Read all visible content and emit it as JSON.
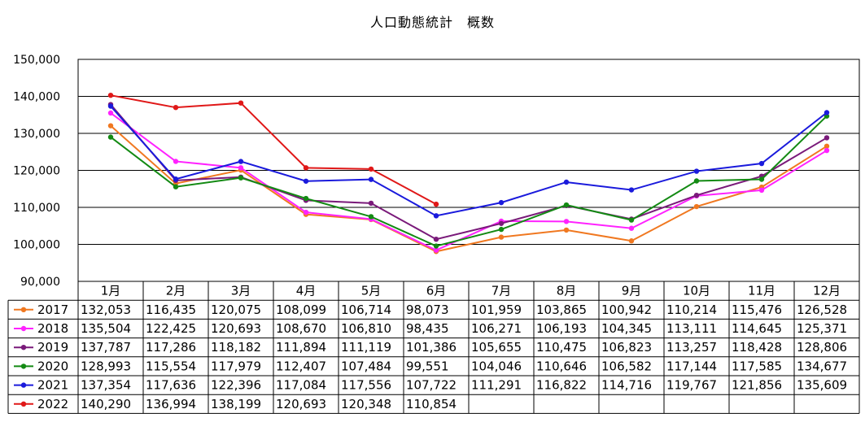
{
  "chart_data": {
    "type": "line",
    "title": "人口動態統計　概数",
    "categories": [
      "1月",
      "2月",
      "3月",
      "4月",
      "5月",
      "6月",
      "7月",
      "8月",
      "9月",
      "10月",
      "11月",
      "12月"
    ],
    "ylim": [
      90000,
      150000
    ],
    "yticks": [
      "90,000",
      "100,000",
      "110,000",
      "120,000",
      "130,000",
      "140,000",
      "150,000"
    ],
    "ytick_values": [
      90000,
      100000,
      110000,
      120000,
      130000,
      140000,
      150000
    ],
    "grid": true,
    "legend": "data-table-below",
    "series": [
      {
        "name": "2017",
        "color": "#f07820",
        "values": [
          132053,
          116435,
          120075,
          108099,
          106714,
          98073,
          101959,
          103865,
          100942,
          110214,
          115476,
          126528
        ],
        "labels": [
          "132,053",
          "116,435",
          "120,075",
          "108,099",
          "106,714",
          "98,073",
          "101,959",
          "103,865",
          "100,942",
          "110,214",
          "115,476",
          "126,528"
        ]
      },
      {
        "name": "2018",
        "color": "#ff22ff",
        "values": [
          135504,
          122425,
          120693,
          108670,
          106810,
          98435,
          106271,
          106193,
          104345,
          113111,
          114645,
          125371
        ],
        "labels": [
          "135,504",
          "122,425",
          "120,693",
          "108,670",
          "106,810",
          "98,435",
          "106,271",
          "106,193",
          "104,345",
          "113,111",
          "114,645",
          "125,371"
        ]
      },
      {
        "name": "2019",
        "color": "#7a1a7a",
        "values": [
          137787,
          117286,
          118182,
          111894,
          111119,
          101386,
          105655,
          110475,
          106823,
          113257,
          118428,
          128806
        ],
        "labels": [
          "137,787",
          "117,286",
          "118,182",
          "111,894",
          "111,119",
          "101,386",
          "105,655",
          "110,475",
          "106,823",
          "113,257",
          "118,428",
          "128,806"
        ]
      },
      {
        "name": "2020",
        "color": "#138a13",
        "values": [
          128993,
          115554,
          117979,
          112407,
          107484,
          99551,
          104046,
          110646,
          106582,
          117144,
          117585,
          134677
        ],
        "labels": [
          "128,993",
          "115,554",
          "117,979",
          "112,407",
          "107,484",
          "99,551",
          "104,046",
          "110,646",
          "106,582",
          "117,144",
          "117,585",
          "134,677"
        ]
      },
      {
        "name": "2021",
        "color": "#1a1adc",
        "values": [
          137354,
          117636,
          122396,
          117084,
          117556,
          107722,
          111291,
          116822,
          114716,
          119767,
          121856,
          135609
        ],
        "labels": [
          "137,354",
          "117,636",
          "122,396",
          "117,084",
          "117,556",
          "107,722",
          "111,291",
          "116,822",
          "114,716",
          "119,767",
          "121,856",
          "135,609"
        ]
      },
      {
        "name": "2022",
        "color": "#e01818",
        "values": [
          140290,
          136994,
          138199,
          120693,
          120348,
          110854,
          null,
          null,
          null,
          null,
          null,
          null
        ],
        "labels": [
          "140,290",
          "136,994",
          "138,199",
          "120,693",
          "120,348",
          "110,854",
          "",
          "",
          "",
          "",
          "",
          ""
        ]
      }
    ]
  }
}
